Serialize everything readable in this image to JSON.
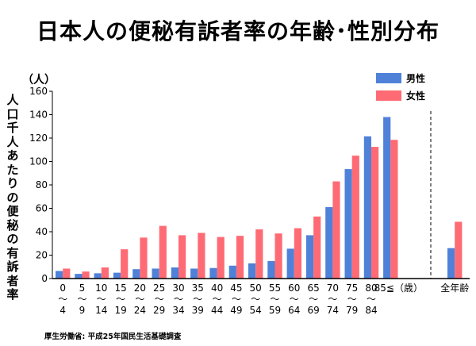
{
  "title": "日本人の便秘有訴者率の年齢･性別分布",
  "source": "厚生労働省: 平成25年国民生活基礎調査",
  "chart_data": {
    "type": "bar",
    "ylabel": "人口千人あたりの便秘の有訴者率",
    "yunit": "（人）",
    "ylim": [
      0,
      160
    ],
    "yticks": [
      0,
      20,
      40,
      60,
      80,
      100,
      120,
      140,
      160
    ],
    "categories": [
      {
        "lines": [
          "0",
          "〜",
          "4"
        ]
      },
      {
        "lines": [
          "5",
          "〜",
          "9"
        ]
      },
      {
        "lines": [
          "10",
          "〜",
          "14"
        ]
      },
      {
        "lines": [
          "15",
          "〜",
          "19"
        ]
      },
      {
        "lines": [
          "20",
          "〜",
          "24"
        ]
      },
      {
        "lines": [
          "25",
          "〜",
          "29"
        ]
      },
      {
        "lines": [
          "30",
          "〜",
          "34"
        ]
      },
      {
        "lines": [
          "35",
          "〜",
          "39"
        ]
      },
      {
        "lines": [
          "40",
          "〜",
          "44"
        ]
      },
      {
        "lines": [
          "45",
          "〜",
          "49"
        ]
      },
      {
        "lines": [
          "50",
          "〜",
          "54"
        ]
      },
      {
        "lines": [
          "55",
          "〜",
          "59"
        ]
      },
      {
        "lines": [
          "60",
          "〜",
          "64"
        ]
      },
      {
        "lines": [
          "65",
          "〜",
          "69"
        ]
      },
      {
        "lines": [
          "70",
          "〜",
          "74"
        ]
      },
      {
        "lines": [
          "75",
          "〜",
          "79"
        ]
      },
      {
        "lines": [
          "80",
          "〜",
          "84"
        ]
      },
      {
        "lines": [
          "85≦（歳）"
        ]
      },
      {
        "lines": [
          "全年齢"
        ]
      }
    ],
    "series": [
      {
        "name": "男性",
        "color": "#4f81d9",
        "values": [
          6.5,
          4,
          4.5,
          5,
          8,
          8.5,
          9.5,
          8.5,
          9,
          11,
          13,
          15,
          25.5,
          37,
          61,
          93.5,
          121.5,
          138,
          26
        ]
      },
      {
        "name": "女性",
        "color": "#ff6b74",
        "values": [
          8.5,
          6,
          9.5,
          25,
          35,
          45,
          37,
          39,
          35.5,
          36.5,
          42,
          38.5,
          43,
          53,
          83,
          105,
          112.5,
          118.5,
          48.5
        ]
      }
    ],
    "legend_position": "top-right",
    "grid": false,
    "separator": "dashed line before 全年齢"
  }
}
